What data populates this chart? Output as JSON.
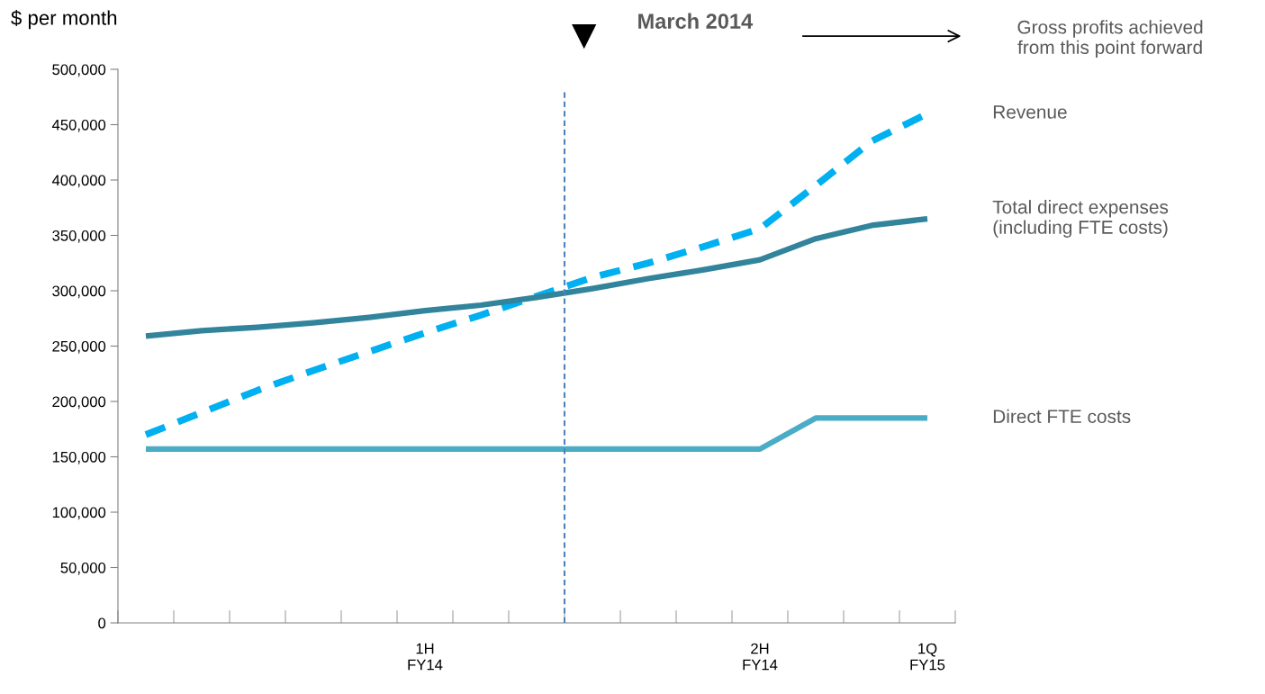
{
  "chart_data": {
    "type": "line",
    "ylabel": "$ per month",
    "categories": [
      null,
      null,
      null,
      null,
      null,
      "1H\nFY14",
      null,
      null,
      null,
      null,
      null,
      "2H\nFY14",
      null,
      null,
      "1Q\nFY15"
    ],
    "ylim": [
      0,
      500000
    ],
    "yticks": [
      {
        "value": 0,
        "label": "0"
      },
      {
        "value": 50000,
        "label": "50,000"
      },
      {
        "value": 100000,
        "label": "100,000"
      },
      {
        "value": 150000,
        "label": "150,000"
      },
      {
        "value": 200000,
        "label": "200,000"
      },
      {
        "value": 250000,
        "label": "250,000"
      },
      {
        "value": 300000,
        "label": "300,000"
      },
      {
        "value": 350000,
        "label": "350,000"
      },
      {
        "value": 400000,
        "label": "400,000"
      },
      {
        "value": 450000,
        "label": "450,000"
      },
      {
        "value": 500000,
        "label": "500,000"
      }
    ],
    "grid": false,
    "legend": false,
    "marker": "none",
    "series": [
      {
        "name": "Revenue",
        "color": "#00b0f0",
        "line_style": "dashed",
        "values": [
          170000,
          190000,
          210000,
          228000,
          245000,
          262000,
          278000,
          295000,
          312000,
          325000,
          340000,
          356000,
          395000,
          435000,
          460000
        ]
      },
      {
        "name": "Total direct expenses\n(including FTE costs)",
        "color": "#31849b",
        "line_style": "solid",
        "values": [
          259000,
          264000,
          267000,
          271000,
          276000,
          282000,
          287000,
          294000,
          302000,
          311000,
          319000,
          328000,
          347000,
          359000,
          365000
        ]
      },
      {
        "name": "Direct FTE costs",
        "color": "#4bacc6",
        "line_style": "solid",
        "values": [
          157000,
          157000,
          157000,
          157000,
          157000,
          157000,
          157000,
          157000,
          157000,
          157000,
          157000,
          157000,
          185000,
          185000,
          185000
        ]
      }
    ],
    "annotations": [
      "March 2014",
      "Gross profits achieved\nfrom this point forward"
    ]
  }
}
